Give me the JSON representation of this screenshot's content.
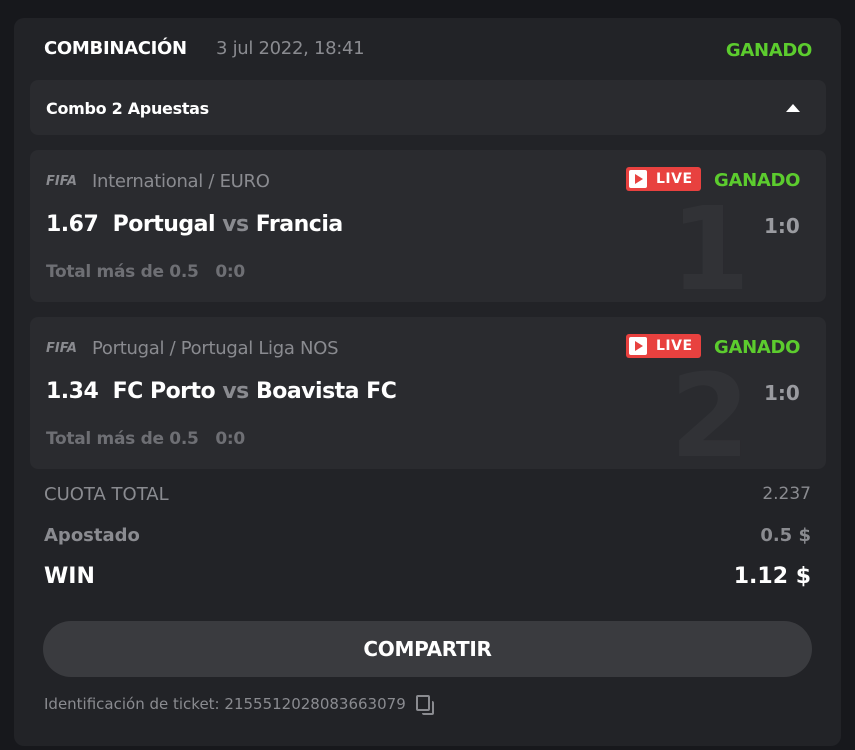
{
  "header": {
    "title": "COMBINACIÓN",
    "date": "3 jul 2022, 18:41",
    "status": "GANADO"
  },
  "combo": {
    "label": "Combo 2 Apuestas"
  },
  "bets": [
    {
      "index": "1",
      "sport_logo": "FIFA",
      "league": "International / EURO",
      "live": "LIVE",
      "status": "GANADO",
      "odds": "1.67",
      "home": "Portugal",
      "vs": "vs",
      "away": "Francia",
      "score": "1:0",
      "market": "Total más de 0.5",
      "market_score": "0:0"
    },
    {
      "index": "2",
      "sport_logo": "FIFA",
      "league": "Portugal / Portugal Liga NOS",
      "live": "LIVE",
      "status": "GANADO",
      "odds": "1.34",
      "home": "FC Porto",
      "vs": "vs",
      "away": "Boavista FC",
      "score": "1:0",
      "market": "Total más de 0.5",
      "market_score": "0:0"
    }
  ],
  "summary": {
    "total_odds_label": "CUOTA TOTAL",
    "total_odds": "2.237",
    "stake_label": "Apostado",
    "stake": "0.5 $",
    "win_label": "WIN",
    "win": "1.12 $"
  },
  "share_label": "COMPARTIR",
  "ticket": {
    "label": "Identificación de ticket:",
    "id": "2155512028083663079"
  },
  "colors": {
    "won": "#5ccc2e",
    "live": "#e8413f",
    "background": "#222327"
  }
}
